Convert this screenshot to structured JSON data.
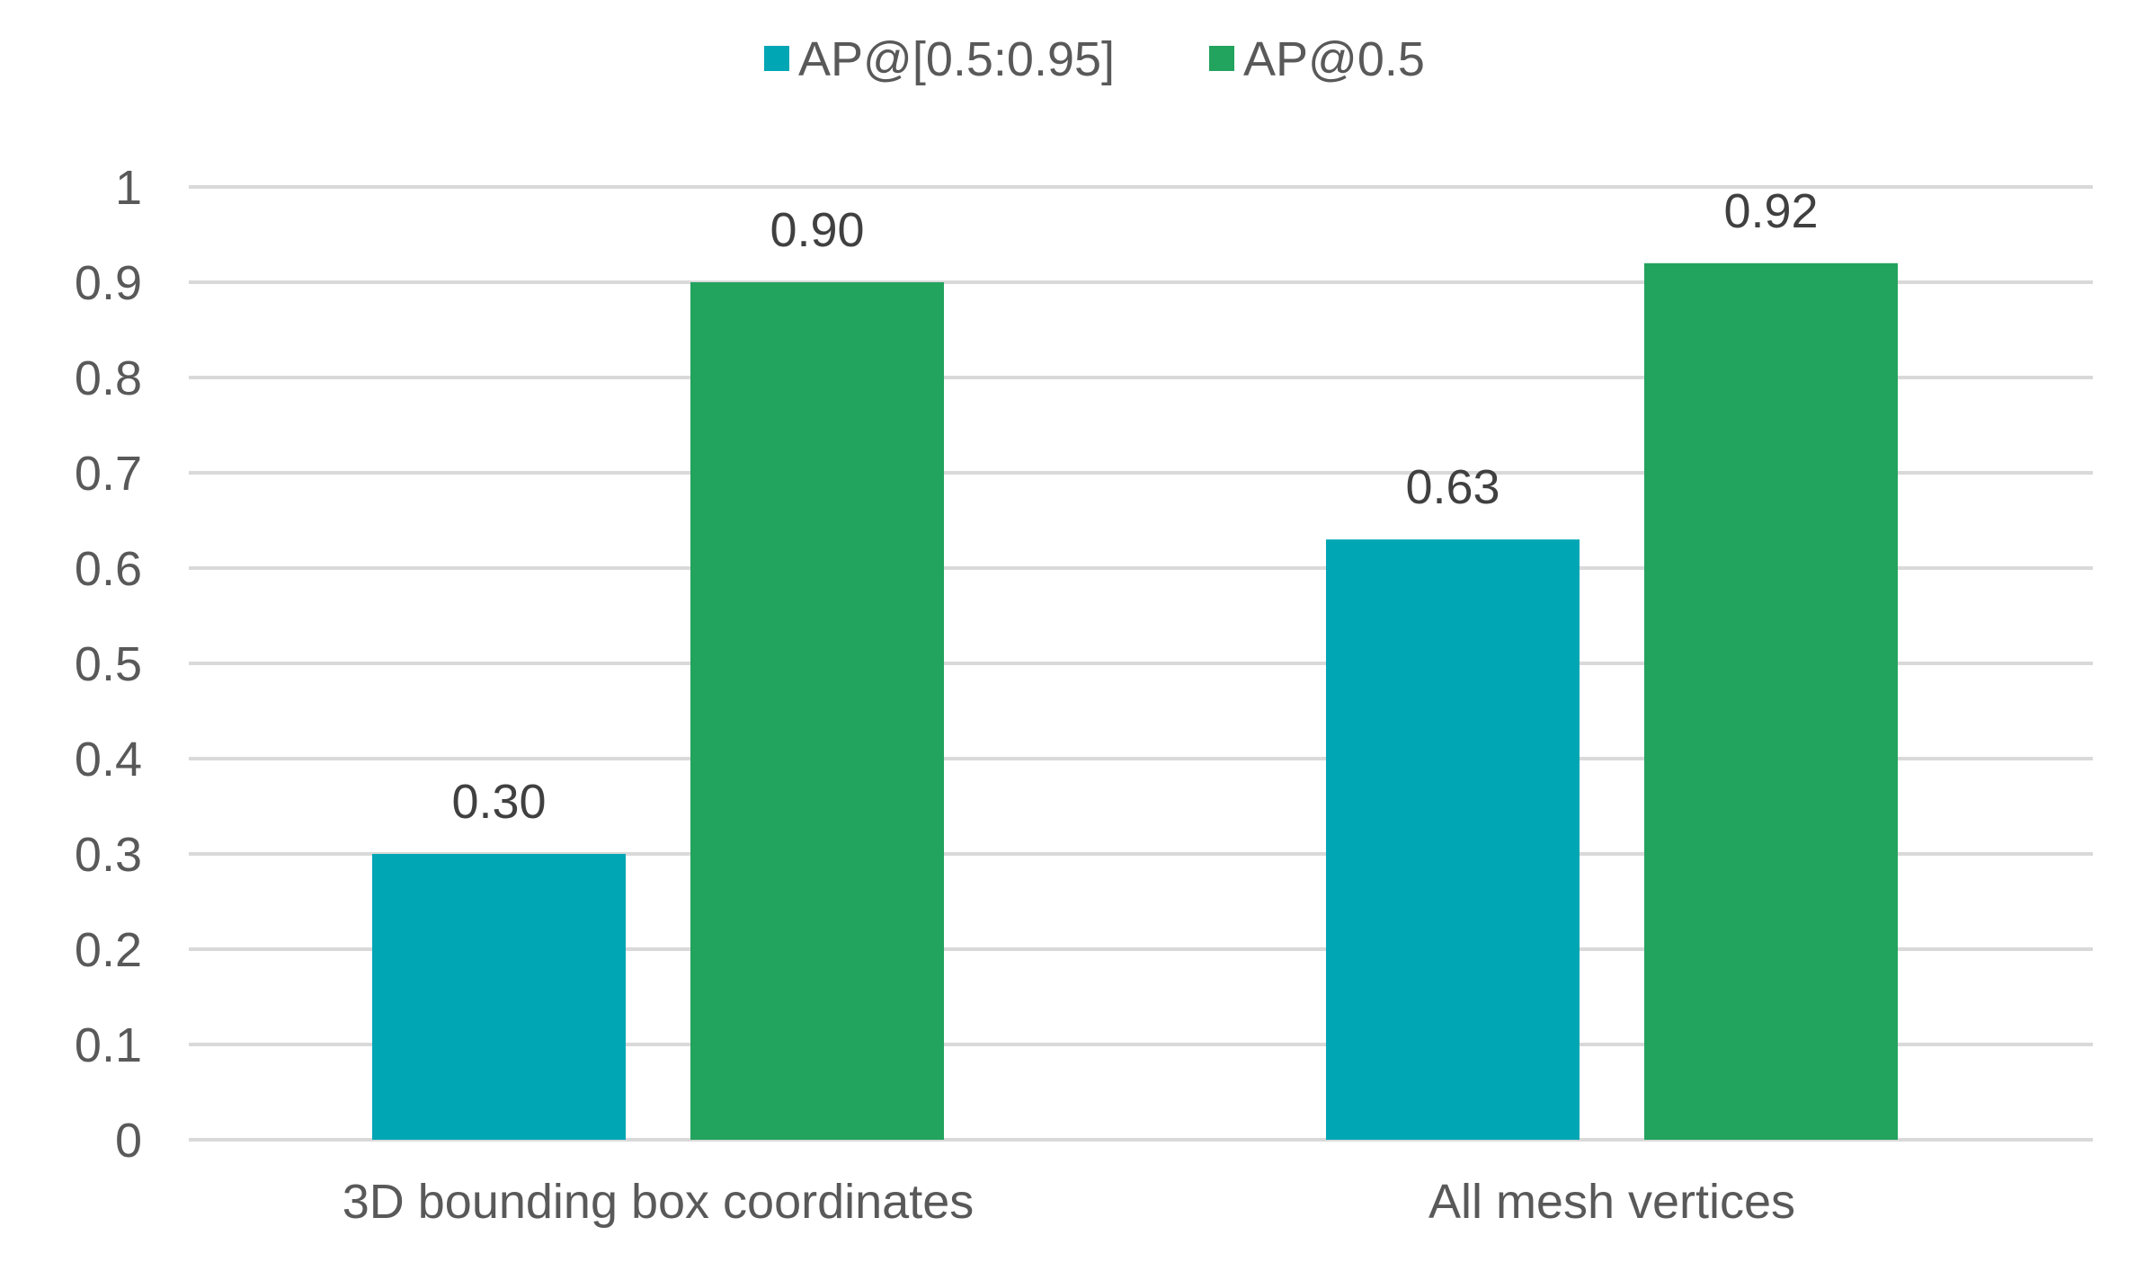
{
  "chart_data": {
    "type": "bar",
    "categories": [
      "3D bounding box coordinates",
      "All mesh vertices"
    ],
    "series": [
      {
        "name": "AP@[0.5:0.95]",
        "color": "#00A6B4",
        "values": [
          0.3,
          0.63
        ],
        "labels": [
          "0.30",
          "0.63"
        ]
      },
      {
        "name": "AP@0.5",
        "color": "#22A35E",
        "values": [
          0.9,
          0.92
        ],
        "labels": [
          "0.90",
          "0.92"
        ]
      }
    ],
    "y_ticks": [
      "0",
      "0.1",
      "0.2",
      "0.3",
      "0.4",
      "0.5",
      "0.6",
      "0.7",
      "0.8",
      "0.9",
      "1"
    ],
    "ylim": [
      0,
      1
    ],
    "grid": true,
    "legend_position": "top-center",
    "gridline_color": "#d9d9d9"
  }
}
